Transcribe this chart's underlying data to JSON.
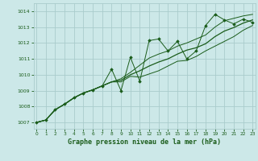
{
  "title": "Graphe pression niveau de la mer (hPa)",
  "bg_color": "#cce8e8",
  "grid_color": "#aacccc",
  "line_color": "#1a5c1a",
  "marker_color": "#1a5c1a",
  "xlim": [
    -0.3,
    23.3
  ],
  "ylim": [
    1006.6,
    1014.5
  ],
  "yticks": [
    1007,
    1008,
    1009,
    1010,
    1011,
    1012,
    1013,
    1014
  ],
  "xticks": [
    0,
    1,
    2,
    3,
    4,
    5,
    6,
    7,
    8,
    9,
    10,
    11,
    12,
    13,
    14,
    15,
    16,
    17,
    18,
    19,
    20,
    21,
    22,
    23
  ],
  "x": [
    0,
    1,
    2,
    3,
    4,
    5,
    6,
    7,
    8,
    9,
    10,
    11,
    12,
    13,
    14,
    15,
    16,
    17,
    18,
    19,
    20,
    21,
    22,
    23
  ],
  "y_zigzag": [
    1007.0,
    1007.15,
    1007.8,
    1008.15,
    1008.55,
    1008.85,
    1009.05,
    1009.3,
    1010.35,
    1009.0,
    1011.1,
    1009.6,
    1012.15,
    1012.25,
    1011.5,
    1012.1,
    1011.0,
    1011.5,
    1013.1,
    1013.8,
    1013.45,
    1013.2,
    1013.5,
    1013.3
  ],
  "y_upper": [
    1007.0,
    1007.15,
    1007.8,
    1008.15,
    1008.55,
    1008.85,
    1009.05,
    1009.3,
    1009.55,
    1009.75,
    1010.15,
    1010.6,
    1011.05,
    1011.3,
    1011.5,
    1011.8,
    1012.0,
    1012.25,
    1012.5,
    1013.0,
    1013.4,
    1013.55,
    1013.7,
    1013.8
  ],
  "y_lower": [
    1007.0,
    1007.15,
    1007.8,
    1008.15,
    1008.55,
    1008.85,
    1009.05,
    1009.3,
    1009.55,
    1009.55,
    1009.9,
    1009.85,
    1010.05,
    1010.25,
    1010.55,
    1010.85,
    1010.9,
    1011.15,
    1011.5,
    1011.8,
    1012.1,
    1012.4,
    1012.8,
    1013.1
  ],
  "y_smooth": [
    1007.0,
    1007.15,
    1007.8,
    1008.15,
    1008.55,
    1008.85,
    1009.05,
    1009.3,
    1009.55,
    1009.65,
    1010.0,
    1010.25,
    1010.55,
    1010.8,
    1011.0,
    1011.3,
    1011.55,
    1011.7,
    1011.95,
    1012.4,
    1012.75,
    1012.97,
    1013.25,
    1013.45
  ]
}
